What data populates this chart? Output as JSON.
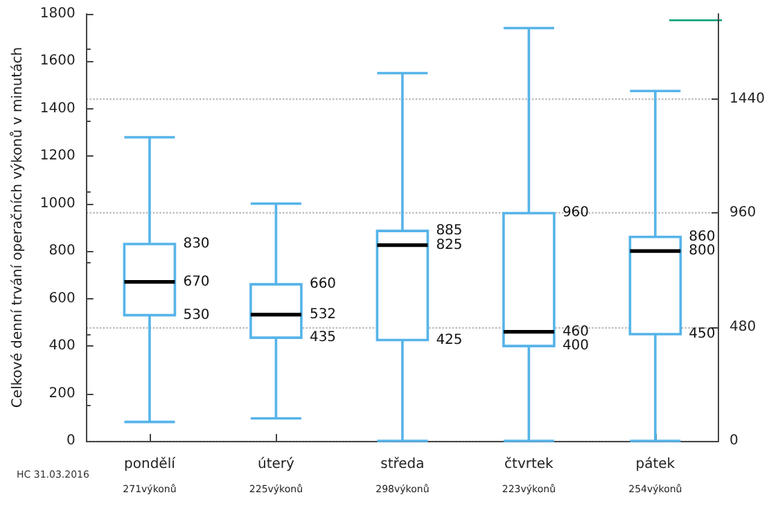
{
  "chart_data": {
    "type": "box",
    "ylabel": "Celkové denní trvání operačních výkonů v minutách",
    "categories": [
      "pondělí\n271výkonů",
      "úterý\n225výkonů",
      "středa\n298výkonů",
      "čtvrtek\n223výkonů",
      "pátek\n254výkonů"
    ],
    "series": [
      {
        "color": "#56b4e9",
        "boxes": [
          {
            "low": 80,
            "q1": 530,
            "median": 670,
            "q3": 830,
            "high": 1280
          },
          {
            "low": 95,
            "q1": 435,
            "median": 532,
            "q3": 660,
            "high": 1000
          },
          {
            "low": 0,
            "q1": 425,
            "median": 825,
            "q3": 885,
            "high": 1550
          },
          {
            "low": 0,
            "q1": 400,
            "median": 460,
            "q3": 960,
            "high": 1740
          },
          {
            "low": 0,
            "q1": 450,
            "median": 800,
            "q3": 860,
            "high": 1475
          }
        ]
      }
    ],
    "ylim": [
      0,
      1800
    ],
    "yticks": [
      0,
      200,
      400,
      600,
      800,
      1000,
      1200,
      1400,
      1600,
      1800
    ],
    "y2lim": [
      0,
      1800
    ],
    "y2ticks": [
      0,
      480,
      960,
      1440
    ],
    "grid": "y2",
    "annotations": [
      "HC 31.03.2016",
      {
        "text": "830",
        "x": "pondělí\n271výkonů",
        "y": 830
      },
      {
        "text": "670",
        "x": "pondělí\n271výkonů",
        "y": 670
      },
      {
        "text": "530",
        "x": "pondělí\n271výkonů",
        "y": 530
      },
      {
        "text": "660",
        "x": "úterý\n225výkonů",
        "y": 660
      },
      {
        "text": "532",
        "x": "úterý\n225výkonů",
        "y": 532
      },
      {
        "text": "435",
        "x": "úterý\n225výkonů",
        "y": 435
      },
      {
        "text": "885",
        "x": "středa\n298výkonů",
        "y": 885
      },
      {
        "text": "825",
        "x": "středa\n298výkonů",
        "y": 825
      },
      {
        "text": "425",
        "x": "středa\n298výkonů",
        "y": 425
      },
      {
        "text": "960",
        "x": "čtvrtek\n223výkonů",
        "y": 960
      },
      {
        "text": "460",
        "x": "čtvrtek\n223výkonů",
        "y": 460
      },
      {
        "text": "400",
        "x": "čtvrtek\n223výkonů",
        "y": 400
      },
      {
        "text": "860",
        "x": "pátek\n254výkonů",
        "y": 860
      },
      {
        "text": "800",
        "x": "pátek\n254výkonů",
        "y": 800
      },
      {
        "text": "450",
        "x": "pátek\n254výkonů",
        "y": 450
      }
    ]
  }
}
